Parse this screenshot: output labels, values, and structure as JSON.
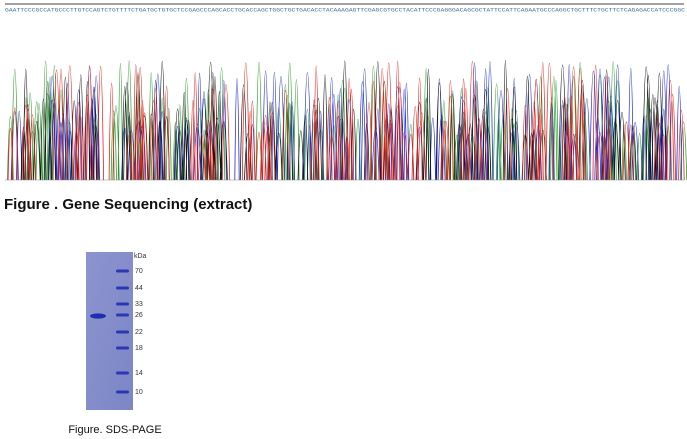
{
  "sequence": "GAATTCCCGCCATGCCCTTGTCCAGTCTGTTTTCTGATGCTGTGCTCCGAGCCCAGCACCTGCACCAGCTGGCTGCTGACACCTACAAAGAGTTCGAGCGTGCCTACATTCCCGAGGGACAGCGCTATTCCATTCAGAATGCCCAGGCTGCTTTCTGCTTCTCAGAGACCATCCCGGC",
  "figure_1": {
    "caption": "Figure . Gene Sequencing (extract)"
  },
  "figure_2": {
    "unit": "kDa",
    "markers": [
      "70",
      "44",
      "33",
      "26",
      "22",
      "18",
      "14",
      "10"
    ],
    "caption": "Figure. SDS-PAGE"
  }
}
